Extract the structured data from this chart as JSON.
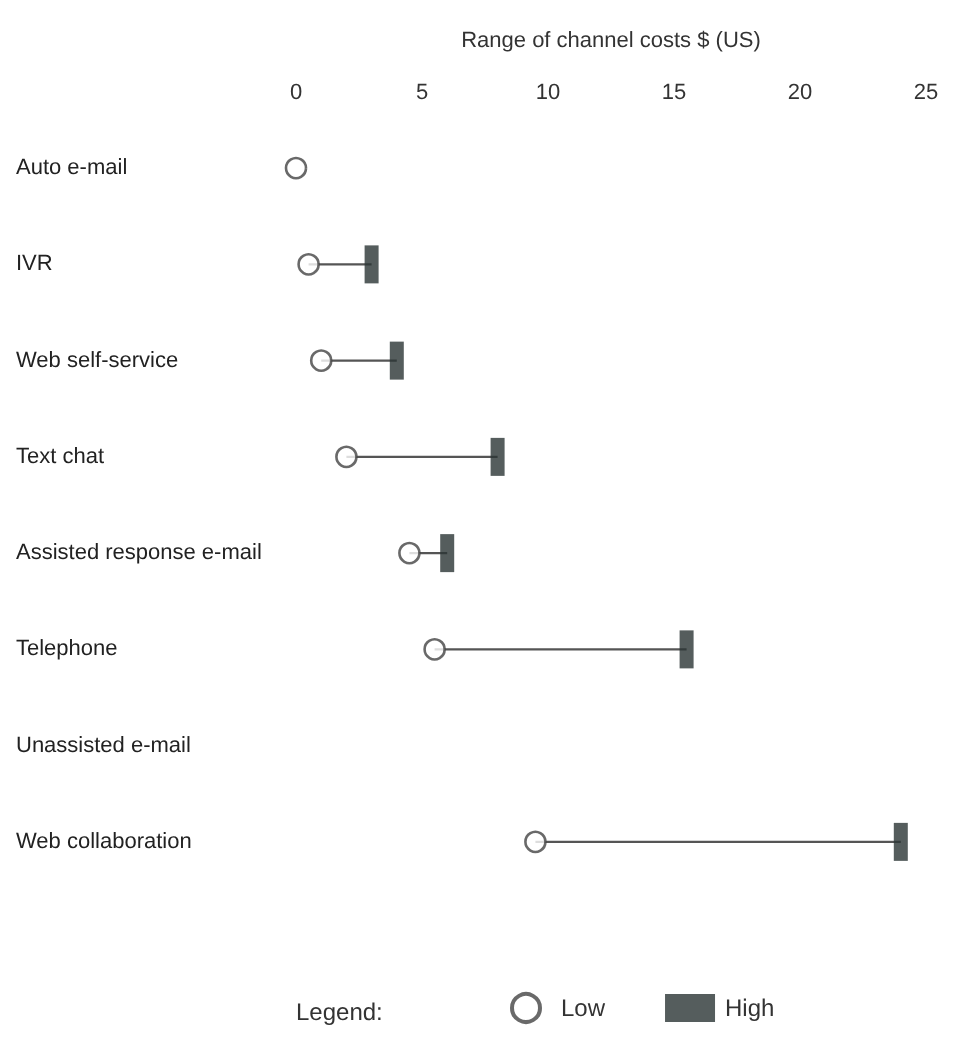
{
  "chart_data": {
    "type": "scatter",
    "orientation": "horizontal",
    "xlabel": "Range of channel costs $ (US)",
    "categories": [
      "Auto e-mail",
      "IVR",
      "Web self-service",
      "Text chat",
      "Assisted response e-mail",
      "Telephone",
      "Unassisted e-mail",
      "Web collaboration"
    ],
    "series": [
      {
        "name": "Low",
        "color": "#444444",
        "marker": "circle",
        "values": [
          0,
          0.5,
          1,
          2,
          4.5,
          5.5,
          null,
          9.5
        ]
      },
      {
        "name": "High",
        "color": "#2b3535",
        "marker": "square",
        "values": [
          null,
          3,
          4,
          8,
          6,
          15.5,
          null,
          24
        ]
      }
    ],
    "xlim": [
      0,
      25
    ],
    "xticks": [
      0,
      5,
      10,
      15,
      20,
      25
    ],
    "grid": false,
    "legend": "bottom",
    "legend_title": "Legend:"
  }
}
